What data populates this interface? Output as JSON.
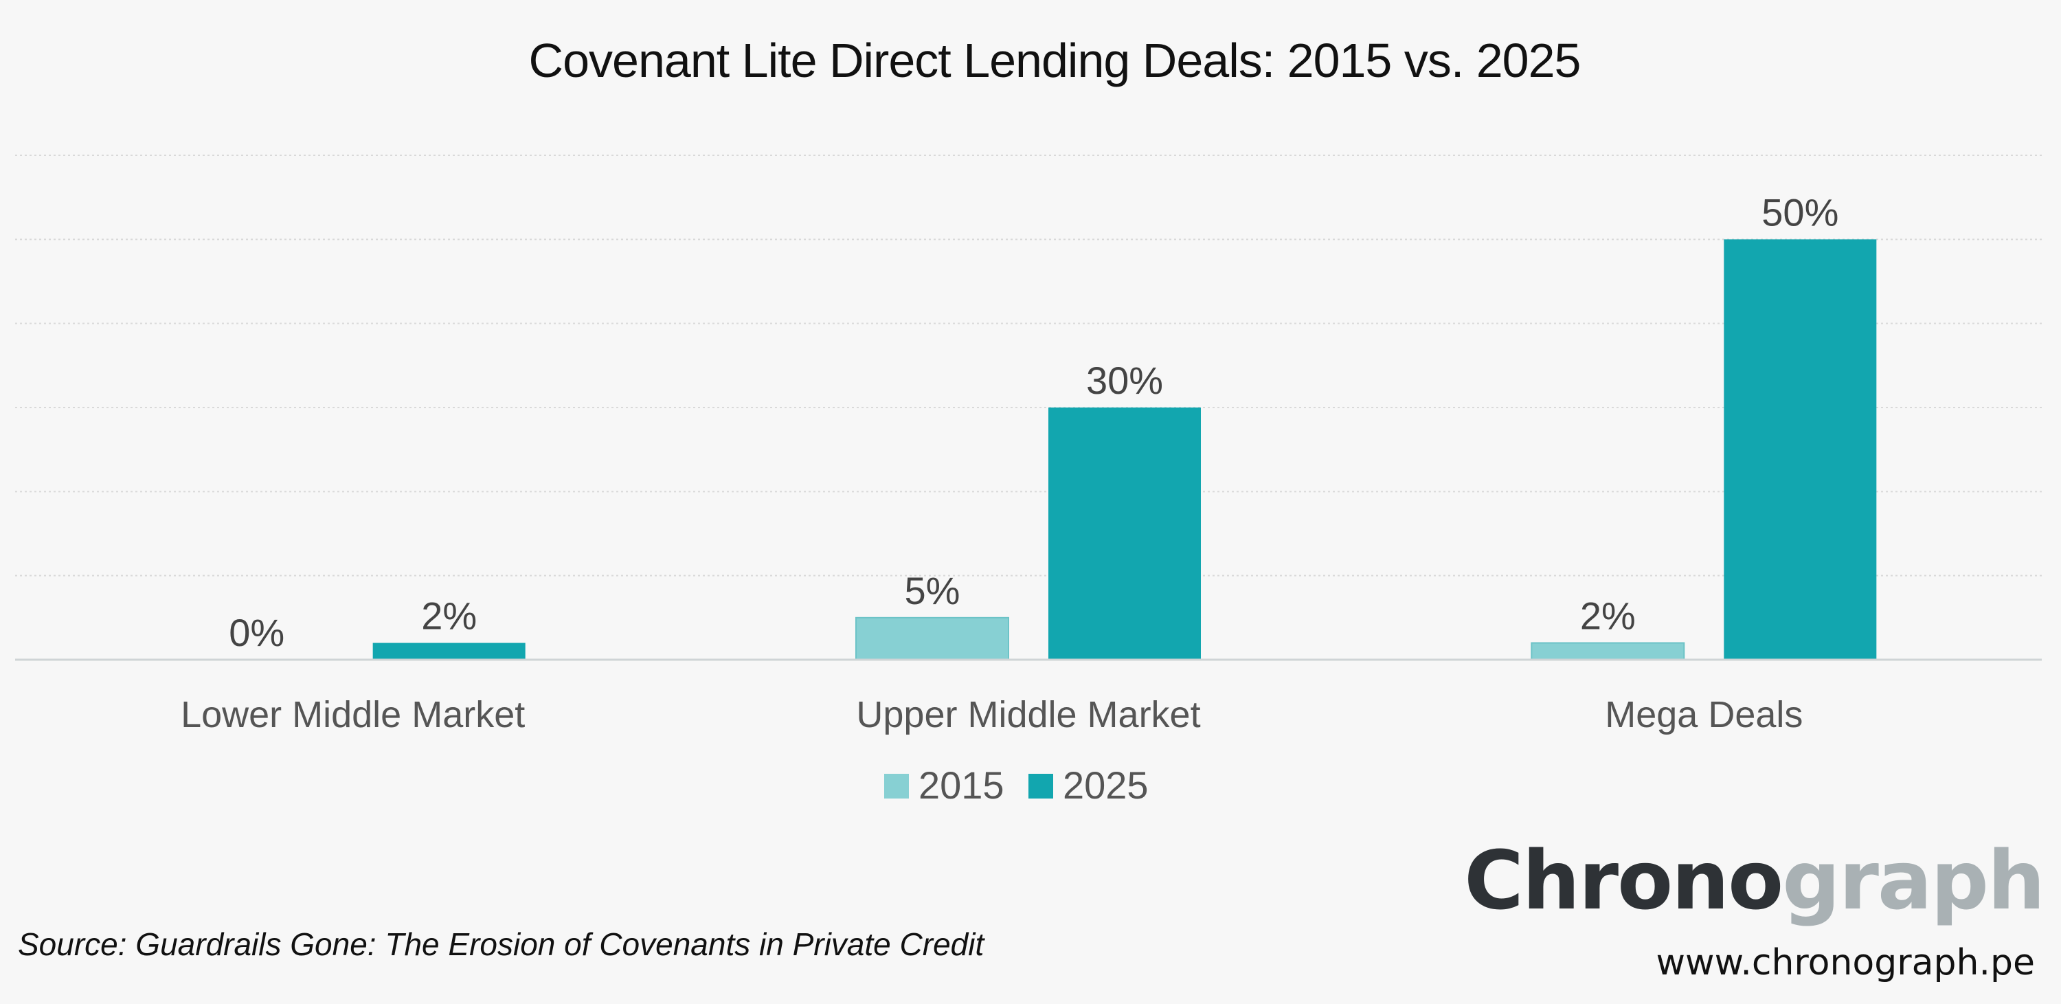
{
  "chart_data": {
    "type": "bar",
    "title": "Covenant Lite Direct Lending Deals: 2015 vs. 2025",
    "categories": [
      "Lower Middle Market",
      "Upper Middle Market",
      "Mega Deals"
    ],
    "series": [
      {
        "name": "2015",
        "values": [
          0,
          5,
          2
        ],
        "labels": [
          "0%",
          "5%",
          "2%"
        ],
        "color": "#87d0d3"
      },
      {
        "name": "2025",
        "values": [
          2,
          30,
          50
        ],
        "labels": [
          "2%",
          "30%",
          "50%"
        ],
        "color": "#12a6af"
      }
    ],
    "ylim": [
      0,
      60
    ],
    "grid": true,
    "xlabel": "",
    "ylabel": "",
    "legend": "bottom-center"
  },
  "footer": {
    "source": "Source:  Guardrails Gone: The Erosion of Covenants in Private Credit",
    "brand_dark": "Chrono",
    "brand_light": "graph",
    "url": "www.chronograph.pe"
  },
  "colors": {
    "background": "#f7f7f7",
    "brand_dark": "#2e3236",
    "brand_light": "#a9b1b4"
  }
}
